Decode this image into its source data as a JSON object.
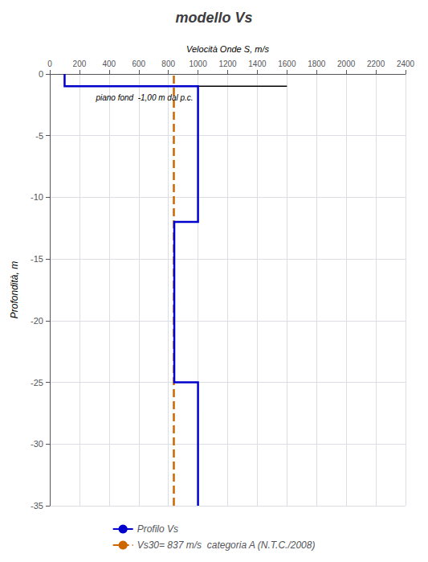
{
  "chart_data": {
    "type": "line",
    "title": "modello Vs",
    "xlabel": "Velocità Onde S, m/s",
    "ylabel": "Profondità, m",
    "annotation": "piano fond  -1,00 m dal p.c.",
    "xlim": [
      0,
      2400
    ],
    "ylim": [
      -35,
      0
    ],
    "xticks": [
      0,
      200,
      400,
      600,
      800,
      1000,
      1200,
      1400,
      1600,
      1800,
      2000,
      2200,
      2400
    ],
    "yticks": [
      0,
      -5,
      -10,
      -15,
      -20,
      -25,
      -30,
      -35
    ],
    "grid": true,
    "legend": "bottom",
    "series": [
      {
        "name": "Profilo Vs",
        "color": "#0000CC",
        "line_style": "solid",
        "x": [
          100,
          100,
          1000,
          1000,
          840,
          840,
          1000,
          1000
        ],
        "y": [
          0,
          -1,
          -1,
          -12,
          -12,
          -25,
          -25,
          -35
        ]
      },
      {
        "color": "#000000",
        "line_style": "solid",
        "x": [
          1000,
          1600
        ],
        "y": [
          -1,
          -1
        ]
      },
      {
        "name": "Vs30= 837 m/s  categoria A (N.T.C./2008)",
        "color": "#CC6600",
        "line_style": "dashed",
        "x": [
          837,
          837
        ],
        "y": [
          -35,
          0
        ]
      }
    ]
  }
}
